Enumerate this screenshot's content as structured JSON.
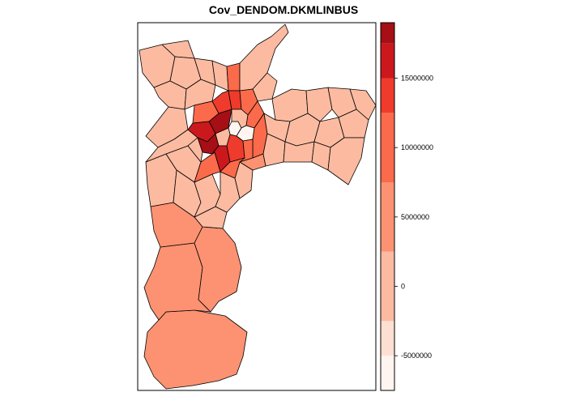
{
  "title": "Cov_DENDOM.DKMLINBUS",
  "legend": {
    "breaks": [
      -7500000,
      -5000000,
      -2500000,
      0,
      2500000,
      5000000,
      7500000,
      10000000,
      12500000,
      15000000,
      17500000,
      19000000
    ],
    "colors": [
      "#fff5f0",
      "#fee0d2",
      "#fcbba1",
      "#fc9272",
      "#fb6a4a",
      "#ef3b2c",
      "#cb181d",
      "#a50f15"
    ],
    "tick_labels": [
      "-5000000",
      "0",
      "5000000",
      "10000000",
      "15000000"
    ]
  },
  "palette": {
    "c0": "#fff5f0",
    "c1": "#fcbba1",
    "c2": "#fc9272",
    "c3": "#fb6a4a",
    "c4": "#ef3b2c",
    "c5": "#cb181d",
    "c6": "#a50f15"
  }
}
